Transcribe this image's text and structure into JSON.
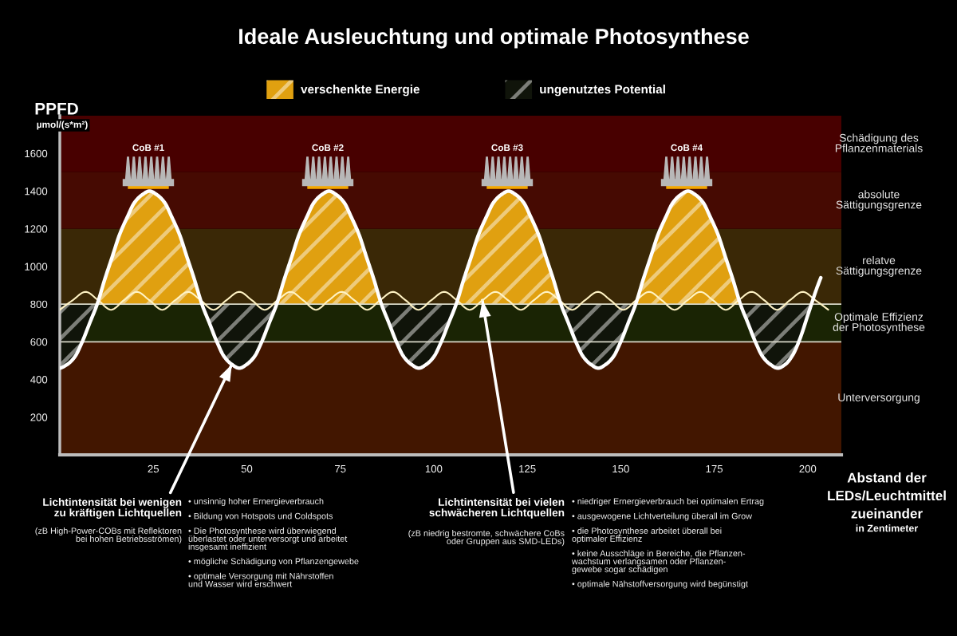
{
  "chart_data": {
    "type": "line",
    "title": "Ideale Ausleuchtung und optimale Photosynthese",
    "xlabel": "Abstand der\nLEDs/Leuchtmittel\nzueinander\nin Zentimeter",
    "ylabel": "PPFD\nµmol/(s*m²)",
    "xlim": [
      0,
      209
    ],
    "ylim": [
      0,
      1800
    ],
    "xticks": [
      25,
      50,
      75,
      100,
      125,
      150,
      175,
      200
    ],
    "yticks": [
      200,
      400,
      600,
      800,
      1000,
      1200,
      1400,
      1600
    ],
    "legend": "top",
    "series": [
      {
        "type": "area",
        "name": "verschenkte Energie",
        "color": "#e0a010",
        "x": [
          10,
          12,
          14,
          16,
          18,
          20,
          22,
          24,
          26,
          28,
          30,
          32,
          34,
          36,
          38,
          48,
          58,
          60,
          62,
          64,
          66,
          68,
          70,
          72,
          74,
          76,
          78,
          80,
          82,
          84,
          86,
          96,
          106,
          108,
          110,
          112,
          114,
          116,
          118,
          120,
          122,
          124,
          126,
          128,
          130,
          132,
          134,
          144,
          154,
          156,
          158,
          160,
          162,
          164,
          166,
          168,
          170,
          172,
          174,
          176,
          178,
          180,
          182
        ],
        "values": [
          800,
          930,
          1050,
          1170,
          1260,
          1340,
          1380,
          1400,
          1380,
          1340,
          1260,
          1170,
          1050,
          930,
          800,
          null,
          800,
          930,
          1050,
          1170,
          1260,
          1340,
          1380,
          1400,
          1380,
          1340,
          1260,
          1170,
          1050,
          930,
          800,
          null,
          800,
          930,
          1050,
          1170,
          1260,
          1340,
          1380,
          1400,
          1380,
          1340,
          1260,
          1170,
          1050,
          930,
          800,
          null,
          800,
          930,
          1050,
          1170,
          1260,
          1340,
          1380,
          1400,
          1380,
          1340,
          1260,
          1170,
          1050,
          930,
          800
        ]
      },
      {
        "type": "area",
        "name": "ungenutztes Potential",
        "color": "#10140a",
        "x": [
          0,
          0,
          2,
          4,
          6,
          8,
          10,
          24,
          38,
          40,
          42,
          44,
          46,
          48,
          50,
          52,
          54,
          56,
          58,
          72,
          86,
          88,
          90,
          92,
          94,
          96,
          98,
          100,
          102,
          104,
          106,
          120,
          134,
          136,
          138,
          140,
          142,
          144,
          146,
          148,
          150,
          152,
          154,
          168,
          182,
          184,
          186,
          188,
          190,
          192,
          194,
          196,
          198,
          200,
          201
        ],
        "values": [
          800,
          460,
          480,
          520,
          600,
          700,
          800,
          null,
          800,
          700,
          600,
          520,
          480,
          460,
          480,
          520,
          600,
          700,
          800,
          null,
          800,
          700,
          600,
          520,
          480,
          460,
          480,
          520,
          600,
          700,
          800,
          null,
          800,
          700,
          600,
          520,
          480,
          460,
          480,
          520,
          600,
          700,
          800,
          null,
          800,
          700,
          600,
          520,
          480,
          460,
          480,
          530,
          620,
          740,
          800
        ]
      },
      {
        "color": "#ffffff",
        "x": [
          0,
          2,
          4,
          6,
          8,
          10,
          12,
          14,
          16,
          18,
          20,
          22,
          24,
          26,
          28,
          30,
          32,
          34,
          36,
          38,
          40,
          42,
          44,
          46,
          48,
          50,
          52,
          54,
          56,
          58,
          60,
          62,
          64,
          66,
          68,
          70,
          72,
          74,
          76,
          78,
          80,
          82,
          84,
          86,
          88,
          90,
          92,
          94,
          96,
          98,
          100,
          102,
          104,
          106,
          108,
          110,
          112,
          114,
          116,
          118,
          120,
          122,
          124,
          126,
          128,
          130,
          132,
          134,
          136,
          138,
          140,
          142,
          144,
          146,
          148,
          150,
          152,
          154,
          156,
          158,
          160,
          162,
          164,
          166,
          168,
          170,
          172,
          174,
          176,
          178,
          180,
          182,
          184,
          186,
          188,
          190,
          192,
          194,
          196,
          198,
          200,
          201,
          202,
          203.5
        ],
        "values": [
          460,
          480,
          520,
          600,
          700,
          800,
          930,
          1050,
          1170,
          1260,
          1340,
          1380,
          1400,
          1380,
          1340,
          1260,
          1170,
          1050,
          930,
          800,
          700,
          600,
          520,
          480,
          460,
          480,
          520,
          600,
          700,
          800,
          930,
          1050,
          1170,
          1260,
          1340,
          1380,
          1400,
          1380,
          1340,
          1260,
          1170,
          1050,
          930,
          800,
          700,
          600,
          520,
          480,
          460,
          480,
          520,
          600,
          700,
          800,
          930,
          1050,
          1170,
          1260,
          1340,
          1380,
          1400,
          1380,
          1340,
          1260,
          1170,
          1050,
          930,
          800,
          700,
          600,
          520,
          480,
          460,
          480,
          520,
          600,
          700,
          800,
          930,
          1050,
          1170,
          1260,
          1340,
          1380,
          1400,
          1380,
          1340,
          1260,
          1170,
          1050,
          930,
          800,
          700,
          600,
          520,
          480,
          460,
          480,
          530,
          620,
          740,
          800,
          860,
          940
        ]
      },
      {
        "color": "#fff3c4",
        "x": [
          0,
          3.4,
          6.9,
          10.3,
          13.7,
          17.1,
          20.6,
          24.0,
          27.4,
          30.8,
          34.3,
          37.7,
          41.1,
          44.5,
          48.0,
          51.4,
          54.8,
          58.2,
          61.7,
          65.1,
          68.5,
          71.9,
          75.4,
          78.8,
          82.2,
          85.6,
          89.1,
          92.5,
          95.9,
          99.3,
          102.8,
          106.2,
          109.6,
          113.0,
          116.5,
          119.9,
          123.3,
          126.7,
          130.2,
          133.6,
          137.0,
          140.4,
          143.9,
          147.3,
          150.7,
          154.1,
          157.6,
          161.0,
          164.4,
          167.8,
          171.3,
          174.7,
          178.1,
          181.5,
          185.0,
          188.4,
          191.8,
          195.2,
          198.7,
          202.1,
          205.5
        ],
        "values": [
          770,
          820,
          865,
          820,
          770,
          820,
          865,
          820,
          770,
          820,
          865,
          820,
          770,
          820,
          865,
          820,
          770,
          820,
          865,
          820,
          770,
          820,
          865,
          820,
          770,
          820,
          865,
          820,
          770,
          820,
          865,
          820,
          770,
          820,
          865,
          820,
          770,
          820,
          865,
          820,
          770,
          820,
          865,
          820,
          770,
          820,
          865,
          820,
          770,
          820,
          865,
          820,
          770,
          820,
          865,
          820,
          770,
          820,
          865,
          820,
          770
        ]
      }
    ],
    "ref_lines": [
      {
        "axis": "y",
        "value": 800,
        "color": "#d8d8c8"
      },
      {
        "axis": "y",
        "value": 600,
        "color": "#d8d8c8"
      }
    ],
    "bands": [
      {
        "axis": "y",
        "from": 0,
        "to": 600,
        "label": "Unterversorgung",
        "color": "#421600"
      },
      {
        "axis": "y",
        "from": 600,
        "to": 800,
        "label": "Optimale Effizienz\nder Photosynthese",
        "color": "#1a2404"
      },
      {
        "axis": "y",
        "from": 800,
        "to": 1200,
        "label": "relatve\nSättigungsgrenze",
        "color": "#3a2806"
      },
      {
        "axis": "y",
        "from": 1200,
        "to": 1500,
        "label": "absolute\nSättigungsgrenze",
        "color": "#460a02"
      },
      {
        "axis": "y",
        "from": 1500,
        "to": 1800,
        "label": "Schädigung des\nPflanzenmaterials",
        "color": "#480000"
      }
    ],
    "annotations": [
      "CoB #1",
      "CoB #2",
      "CoB #3",
      "CoB #4",
      {
        "text": "Lichtintensität bei wenigen\nzu kräftigen Lichtquellen",
        "x": 46,
        "y": 480
      },
      "(zB High-Power-COBs mit Reflektoren\nbei hohen Betriebsströmen)",
      "• unsinnig hoher Ernergieverbrauch",
      "• Bildung von Hotspots und Coldspots",
      "• Die Photosynthese wird überwiegend\nüberlastet oder unterversorgt und arbeitet\ninsgesamt ineffizient",
      "• mögliche Schädigung von Pflanzengewebe",
      "• optimale Versorgung mit Nährstoffen\nund Wasser wird erschwert",
      {
        "text": "Lichtintensität bei vielen\nschwächeren Lichtquellen",
        "x": 113.0,
        "y": 820
      },
      "(zB niedrig bestromte, schwächere CoBs\noder Gruppen aus SMD-LEDs)",
      "• niedriger Ernergieverbrauch bei optimalen Ertrag",
      "• ausgewogene Lichtverteilung überall im Grow",
      "• die Photosynthese arbeitet überall bei\noptimaler Effizienz",
      "• keine Ausschläge in Bereiche, die Pflanzen-\nwachstum verlangsamen oder Pflanzen-\ngewebe sogar schädigen",
      "• optimale Nähstoffversorgung wird begünstigt"
    ]
  }
}
